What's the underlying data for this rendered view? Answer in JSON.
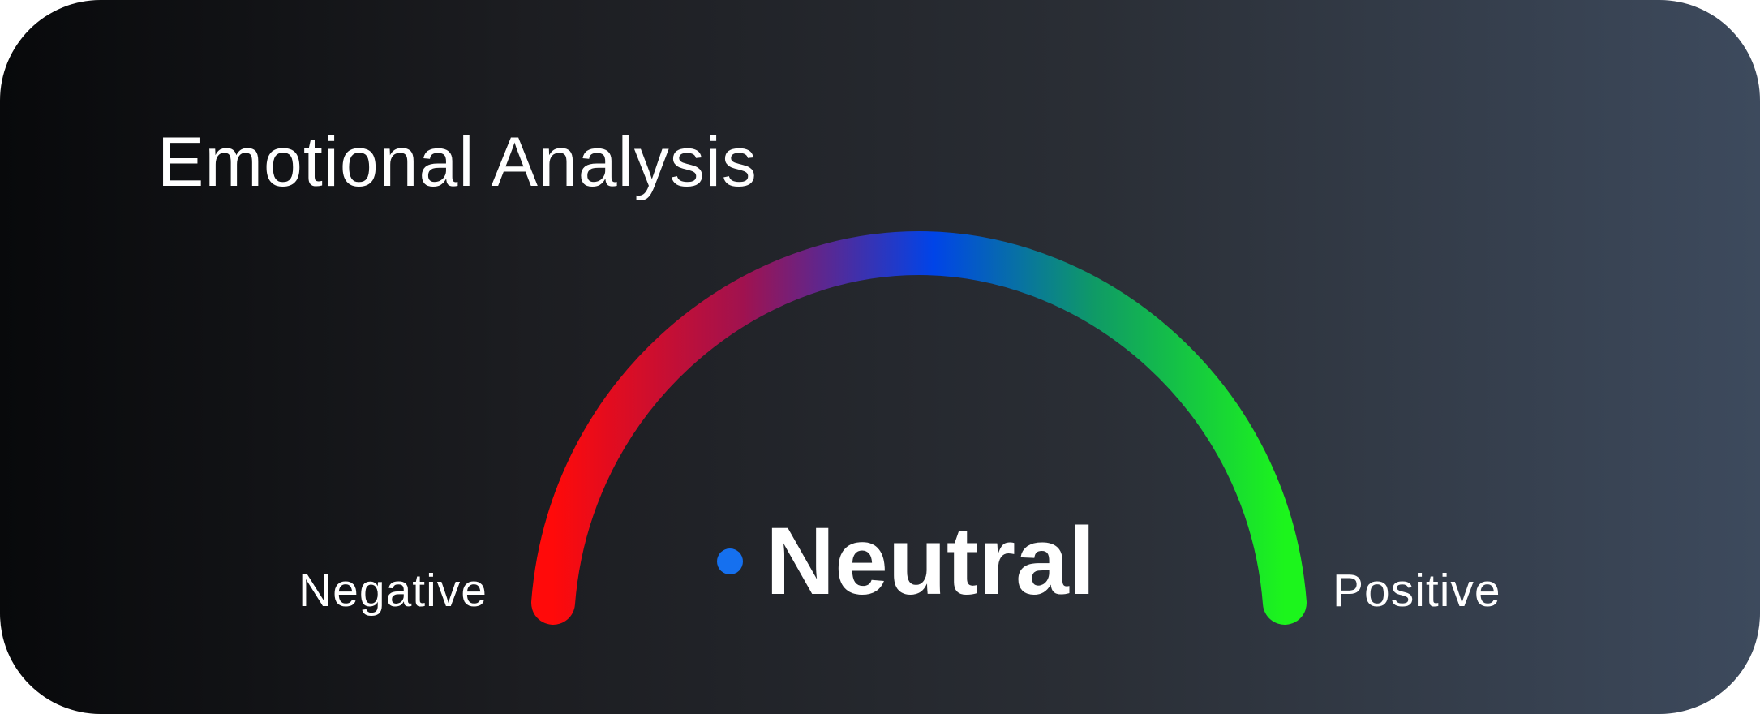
{
  "title": "Emotional Analysis",
  "gauge": {
    "min_label": "Negative",
    "max_label": "Positive",
    "status": "Neutral",
    "value_fraction": 0.5,
    "colors": {
      "negative": "#ff0a0a",
      "neutral": "#0044e8",
      "positive": "#1cf51c",
      "indicator_dot": "#1570ef"
    }
  }
}
